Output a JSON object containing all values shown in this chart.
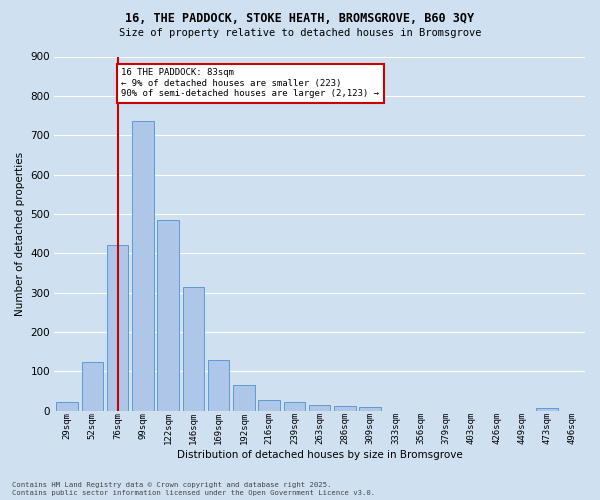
{
  "title1": "16, THE PADDOCK, STOKE HEATH, BROMSGROVE, B60 3QY",
  "title2": "Size of property relative to detached houses in Bromsgrove",
  "xlabel": "Distribution of detached houses by size in Bromsgrove",
  "ylabel": "Number of detached properties",
  "bar_labels": [
    "29sqm",
    "52sqm",
    "76sqm",
    "99sqm",
    "122sqm",
    "146sqm",
    "169sqm",
    "192sqm",
    "216sqm",
    "239sqm",
    "263sqm",
    "286sqm",
    "309sqm",
    "333sqm",
    "356sqm",
    "379sqm",
    "403sqm",
    "426sqm",
    "449sqm",
    "473sqm",
    "496sqm"
  ],
  "bar_values": [
    22,
    125,
    420,
    735,
    485,
    315,
    130,
    65,
    27,
    22,
    15,
    11,
    9,
    0,
    0,
    0,
    0,
    0,
    0,
    8,
    0
  ],
  "bar_color": "#aec6e8",
  "bar_edge_color": "#5b9bd5",
  "vline_index": 2,
  "vline_color": "#cc0000",
  "annotation_text": "16 THE PADDOCK: 83sqm\n← 9% of detached houses are smaller (223)\n90% of semi-detached houses are larger (2,123) →",
  "annotation_box_edge": "#cc0000",
  "ylim": [
    0,
    900
  ],
  "yticks": [
    0,
    100,
    200,
    300,
    400,
    500,
    600,
    700,
    800,
    900
  ],
  "footer1": "Contains HM Land Registry data © Crown copyright and database right 2025.",
  "footer2": "Contains public sector information licensed under the Open Government Licence v3.0.",
  "bg_color": "#cfe0f0",
  "plot_bg_color": "#cfe0f0",
  "grid_color": "#ffffff"
}
